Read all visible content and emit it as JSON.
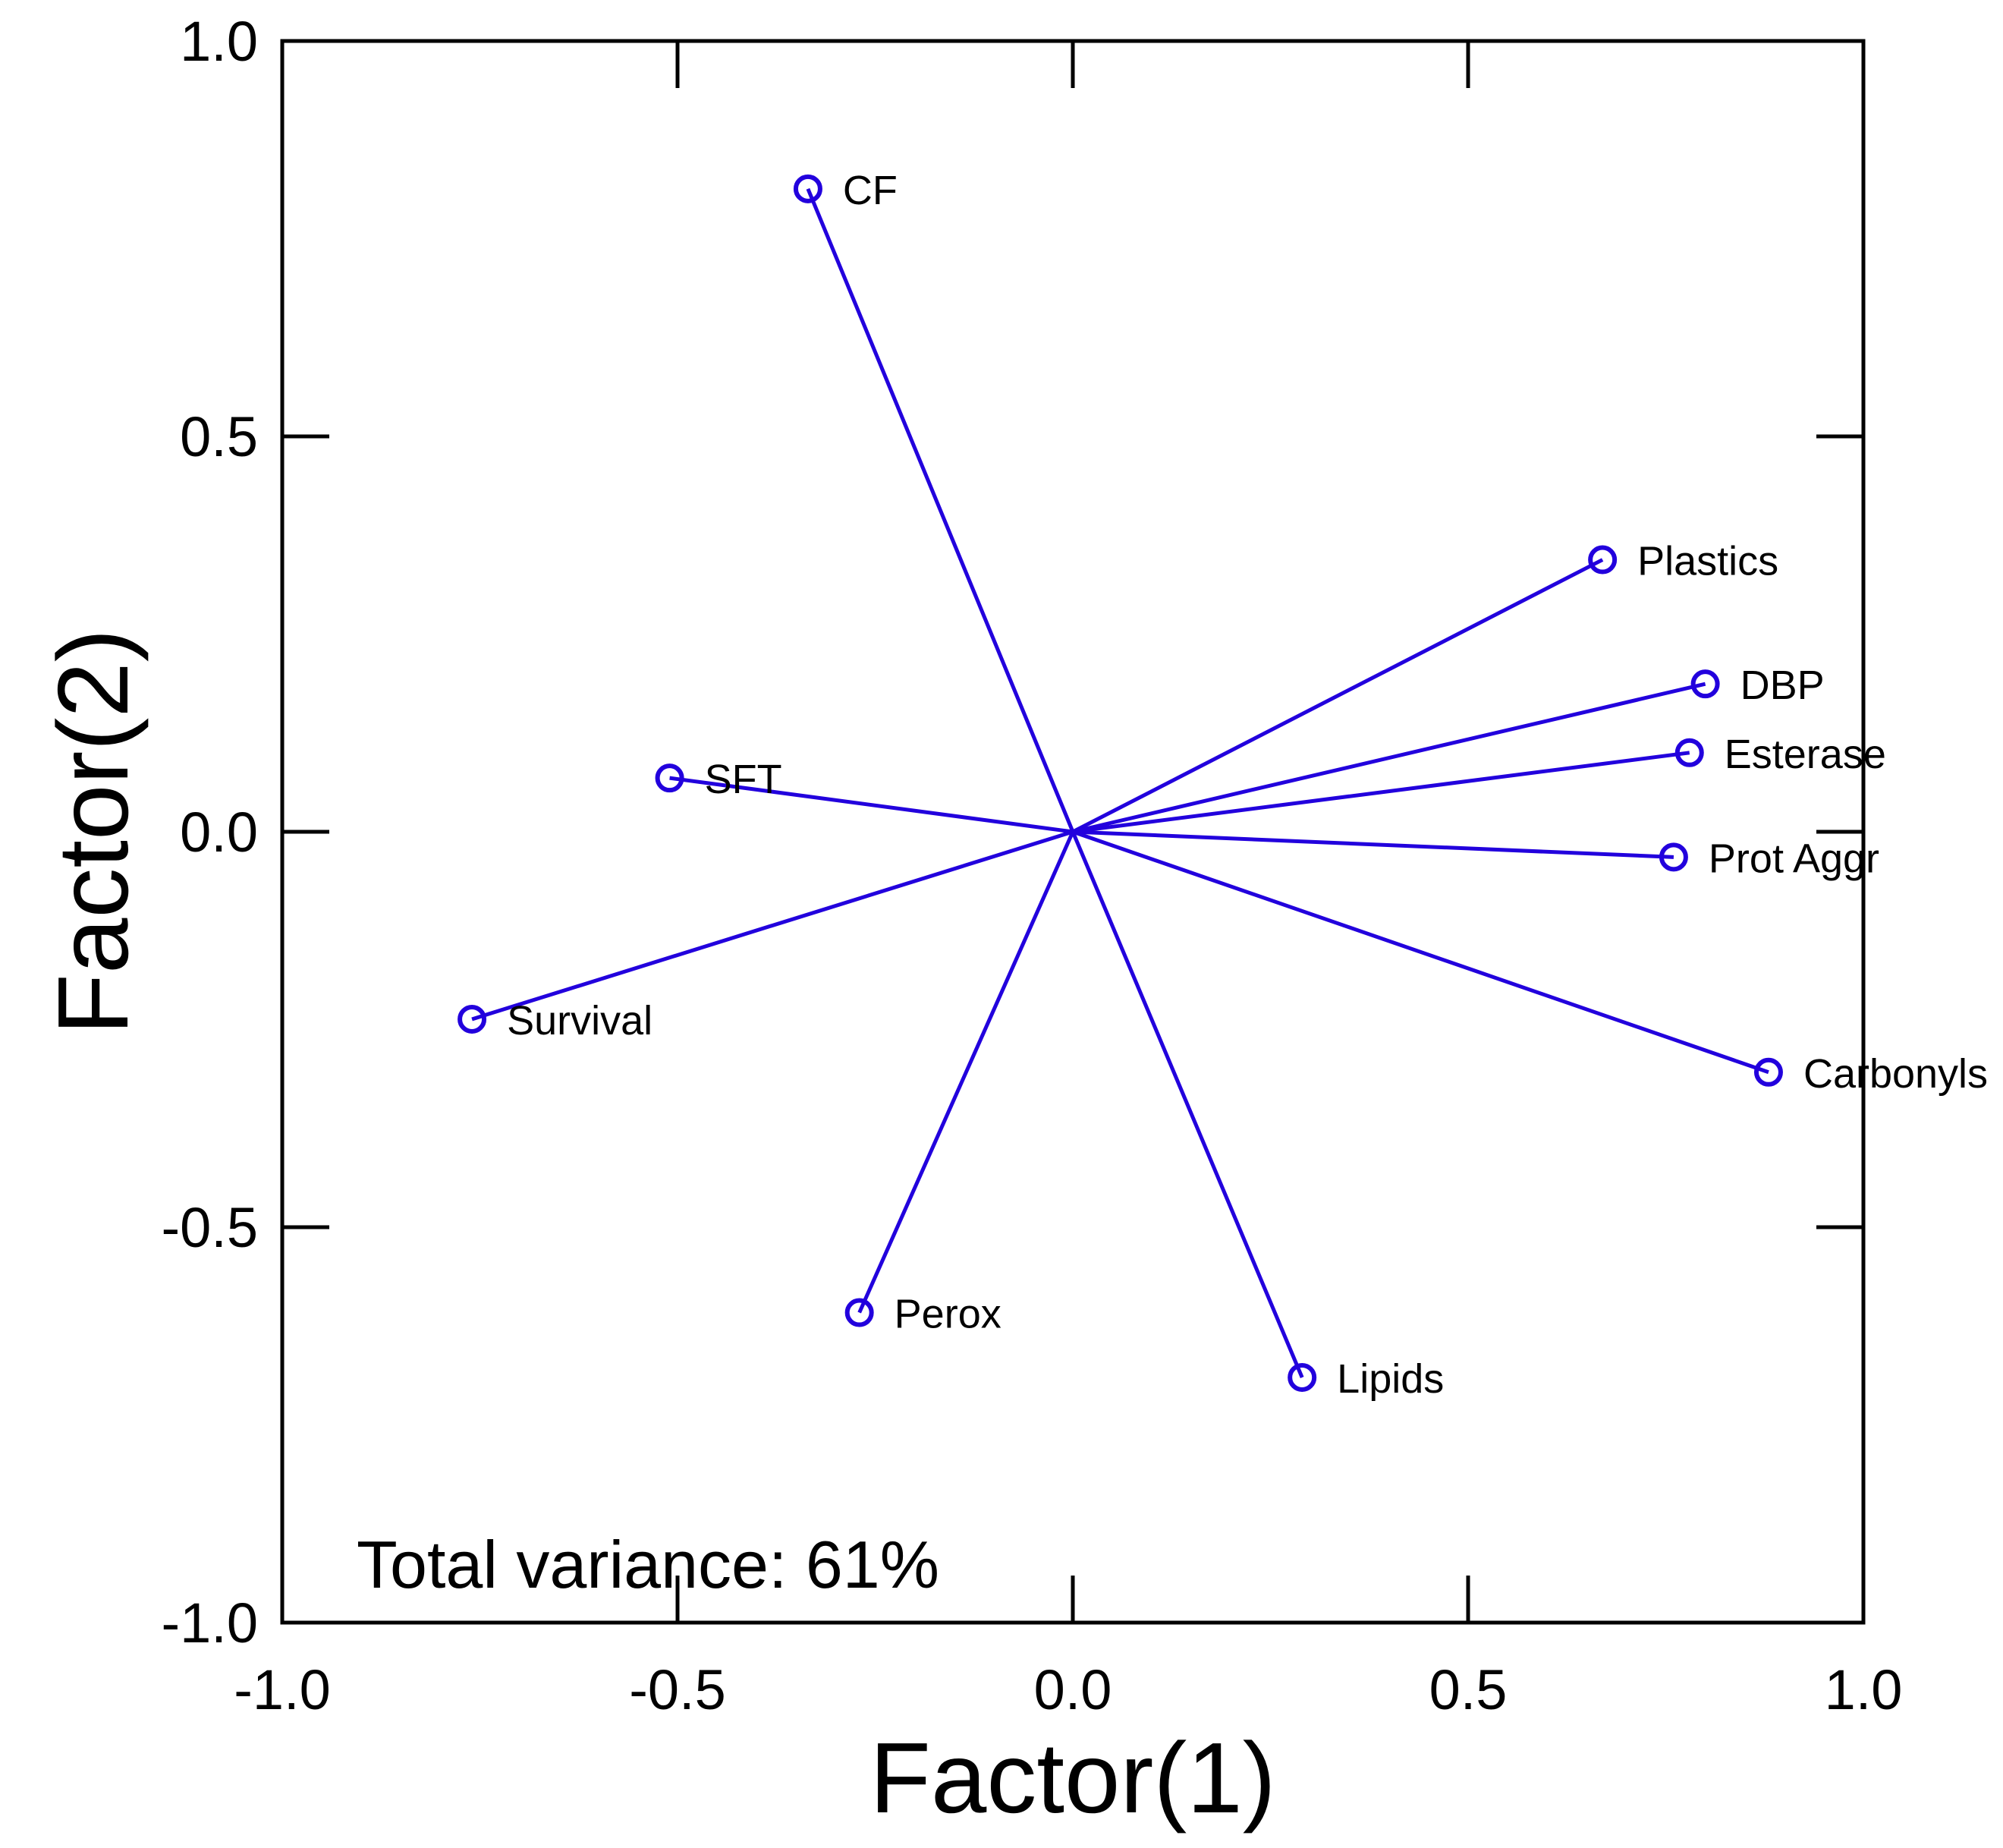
{
  "chart_data": {
    "type": "scatter",
    "subtype": "biplot-loadings",
    "title": "",
    "xlabel": "Factor(1)",
    "ylabel": "Factor(2)",
    "xlim": [
      -1.0,
      1.0
    ],
    "ylim": [
      -1.0,
      1.0
    ],
    "xticks": [
      -1.0,
      -0.5,
      0.0,
      0.5,
      1.0
    ],
    "yticks": [
      -1.0,
      -0.5,
      0.0,
      0.5,
      1.0
    ],
    "xtick_labels": [
      "-1.0",
      "-0.5",
      "0.0",
      "0.5",
      "1.0"
    ],
    "ytick_labels": [
      "-1.0",
      "-0.5",
      "0.0",
      "0.5",
      "1.0"
    ],
    "grid": false,
    "annotation": "Total variance: 61%",
    "color": "#2200dd",
    "points": [
      {
        "label": "CF",
        "x": -0.335,
        "y": 0.813
      },
      {
        "label": "Plastics",
        "x": 0.67,
        "y": 0.344
      },
      {
        "label": "DBP",
        "x": 0.8,
        "y": 0.187
      },
      {
        "label": "Esterase",
        "x": 0.78,
        "y": 0.1
      },
      {
        "label": "SFT",
        "x": -0.51,
        "y": 0.068
      },
      {
        "label": "Prot Aggr",
        "x": 0.76,
        "y": -0.032
      },
      {
        "label": "Survival",
        "x": -0.76,
        "y": -0.237
      },
      {
        "label": "Carbonyls",
        "x": 0.88,
        "y": -0.304
      },
      {
        "label": "Perox",
        "x": -0.27,
        "y": -0.608
      },
      {
        "label": "Lipids",
        "x": 0.29,
        "y": -0.69
      }
    ]
  }
}
